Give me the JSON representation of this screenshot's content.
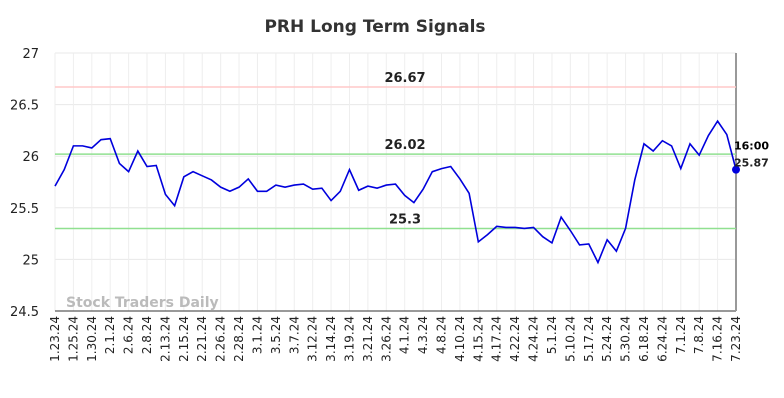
{
  "chart_data": {
    "type": "line",
    "title": "PRH Long Term Signals",
    "watermark": "Stock Traders Daily",
    "categories": [
      "1.23.24",
      null,
      "1.25.24",
      null,
      "1.30.24",
      null,
      "2.1.24",
      null,
      "2.6.24",
      null,
      "2.8.24",
      null,
      "2.13.24",
      null,
      "2.15.24",
      null,
      "2.21.24",
      null,
      "2.26.24",
      null,
      "2.28.24",
      null,
      "3.1.24",
      null,
      "3.5.24",
      null,
      "3.7.24",
      null,
      "3.12.24",
      null,
      "3.14.24",
      null,
      "3.19.24",
      null,
      "3.21.24",
      null,
      "3.26.24",
      null,
      "4.1.24",
      null,
      "4.3.24",
      null,
      "4.8.24",
      null,
      "4.10.24",
      null,
      "4.15.24",
      null,
      "4.17.24",
      null,
      "4.22.24",
      null,
      "4.24.24",
      null,
      "5.1.24",
      null,
      "5.10.24",
      null,
      "5.17.24",
      null,
      "5.24.24",
      null,
      "5.30.24",
      null,
      "6.18.24",
      null,
      "6.24.24",
      null,
      "7.1.24",
      null,
      "7.8.24",
      null,
      "7.16.24",
      null,
      "7.23.24"
    ],
    "values": [
      25.71,
      25.87,
      26.1,
      26.1,
      26.08,
      26.16,
      26.17,
      25.93,
      25.85,
      26.05,
      25.9,
      25.91,
      25.63,
      25.52,
      25.8,
      25.85,
      25.81,
      25.77,
      25.7,
      25.66,
      25.7,
      25.78,
      25.66,
      25.66,
      25.72,
      25.7,
      25.72,
      25.73,
      25.68,
      25.69,
      25.57,
      25.66,
      25.87,
      25.67,
      25.71,
      25.69,
      25.72,
      25.73,
      25.62,
      25.55,
      25.68,
      25.85,
      25.88,
      25.9,
      25.78,
      25.64,
      25.17,
      25.24,
      25.32,
      25.31,
      25.31,
      25.3,
      25.31,
      25.22,
      25.16,
      25.41,
      25.28,
      25.14,
      25.15,
      24.97,
      25.19,
      25.08,
      25.3,
      25.77,
      26.12,
      26.05,
      26.15,
      26.1,
      25.88,
      26.12,
      26.01,
      26.2,
      26.34,
      26.21,
      25.87
    ],
    "color": "#0000dd",
    "last_time": "16:00",
    "hlines": [
      {
        "value": 26.67,
        "color": "#ffc8c8",
        "label_color": "#8b0000"
      },
      {
        "value": 26.02,
        "color": "#90e090",
        "label_color": "#006400"
      },
      {
        "value": 25.3,
        "color": "#90e090",
        "label_color": "#006400"
      }
    ],
    "ylim": [
      24.5,
      27
    ],
    "yticks": [
      24.5,
      25,
      25.5,
      26,
      26.5,
      27
    ],
    "grid": true
  }
}
